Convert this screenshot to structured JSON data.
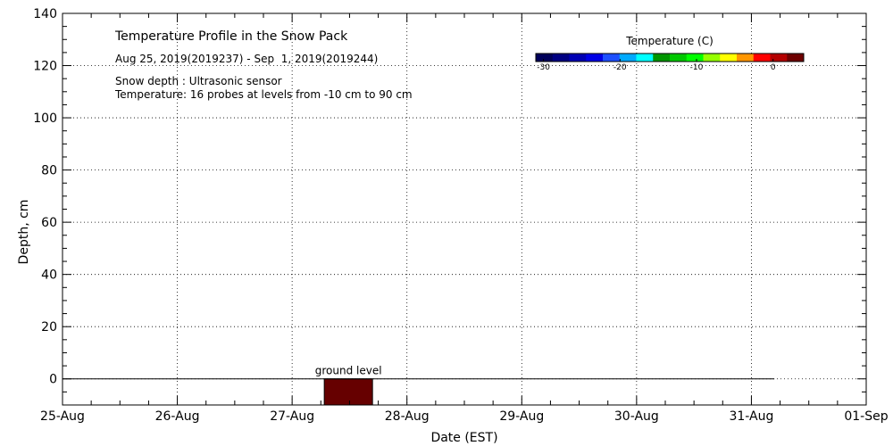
{
  "chart_data": {
    "type": "heatmap",
    "title": "Temperature Profile in the Snow Pack",
    "subtitle": "Aug 25, 2019(2019237) - Sep  1, 2019(2019244)",
    "annotations": [
      "Snow depth : Ultrasonic sensor",
      "Temperature: 16 probes at levels from -10 cm to 90 cm"
    ],
    "xlabel": "Date (EST)",
    "ylabel": "Depth, cm",
    "x_ticks": [
      "25-Aug",
      "26-Aug",
      "27-Aug",
      "28-Aug",
      "29-Aug",
      "30-Aug",
      "31-Aug",
      "01-Sep"
    ],
    "xlim": [
      0,
      7
    ],
    "ylim": [
      -10,
      140
    ],
    "y_ticks": [
      0,
      20,
      40,
      60,
      80,
      100,
      120,
      140
    ],
    "grid": true,
    "ground_level_label": "ground level",
    "ground_line": {
      "y": 0,
      "x_range": [
        0,
        6.2
      ]
    },
    "temperature_block": {
      "x_range": [
        2.28,
        2.7
      ],
      "y_range": [
        -10,
        0
      ],
      "color": "#660000"
    },
    "colorbar": {
      "label": "Temperature (C)",
      "range": [
        -31,
        4
      ],
      "ticks": [
        -30,
        -20,
        -10,
        0
      ],
      "colors": [
        "#00005a",
        "#000082",
        "#0000b4",
        "#0000e6",
        "#1e50ff",
        "#00aaff",
        "#00ffff",
        "#009600",
        "#00c800",
        "#00ff00",
        "#96ff00",
        "#ffff00",
        "#ff9600",
        "#ff0000",
        "#b40000",
        "#6e0000"
      ]
    }
  }
}
